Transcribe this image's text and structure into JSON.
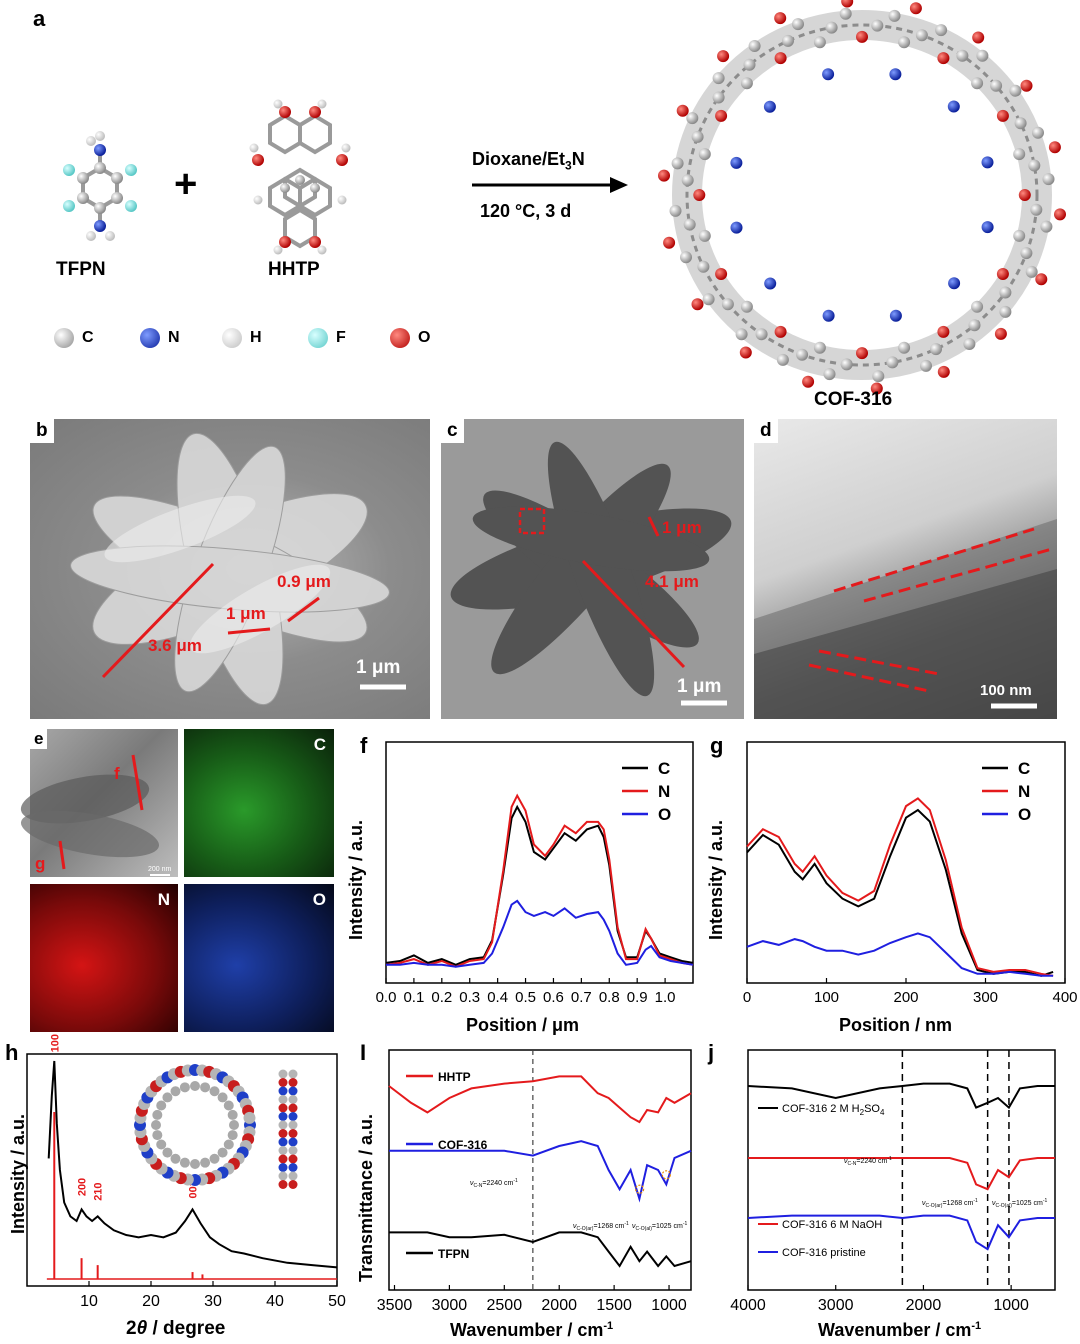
{
  "panel_a": {
    "letter": "a",
    "reactant1": "TFPN",
    "reactant2": "HHTP",
    "plus": "+",
    "condition_solvent": "Dioxane/Et",
    "condition_solvent_sub": "3",
    "condition_solvent_end": "N",
    "condition_temp": "120 °C, 3 d",
    "product": "COF-316",
    "legend": [
      {
        "sym": "C",
        "color": "#c8c8c8"
      },
      {
        "sym": "N",
        "color": "#1f3fc8"
      },
      {
        "sym": "H",
        "color": "#eeeeee"
      },
      {
        "sym": "F",
        "color": "#7fe3e0"
      },
      {
        "sym": "O",
        "color": "#e0281e"
      }
    ]
  },
  "panel_b": {
    "letter": "b",
    "m1": "3.6 μm",
    "m2": "1 μm",
    "m3": "0.9 μm",
    "scale": "1 μm"
  },
  "panel_c": {
    "letter": "c",
    "m1": "1 μm",
    "m2": "4.1 μm",
    "scale": "1 μm"
  },
  "panel_d": {
    "letter": "d",
    "scale": "100 nm"
  },
  "panel_e": {
    "letter": "e",
    "line_f": "f",
    "line_g": "g",
    "scale": "200 nm",
    "maps": [
      "C",
      "N",
      "O"
    ]
  },
  "colors": {
    "C": "#000000",
    "N": "#e41a1c",
    "O": "#1f1fe0",
    "red": "#e41a1c",
    "blue": "#1f1fe0"
  },
  "panel_f": {
    "letter": "f",
    "xlabel": "Position / μm",
    "ylabel": "Intensity / a.u.",
    "legend": [
      "C",
      "N",
      "O"
    ]
  },
  "panel_g": {
    "letter": "g",
    "xlabel": "Position / nm",
    "ylabel": "Intensity / a.u.",
    "legend": [
      "C",
      "N",
      "O"
    ]
  },
  "panel_h": {
    "letter": "h",
    "xlabel_pre": "2",
    "xlabel_theta": "θ",
    "xlabel_post": " / degree",
    "ylabel": "Intensity / a.u.",
    "peaks": [
      "100",
      "200",
      "210",
      "001"
    ]
  },
  "panel_i": {
    "letter": "I",
    "xlabel": "Wavenumber / cm",
    "xlabel_sup": "-1",
    "ylabel": "Transmittance / a.u.",
    "legend": [
      "HHTP",
      "COF-316",
      "TFPN"
    ],
    "ann_cn": "ν",
    "ann_cn_sub": "C-N",
    "ann_cn_val": "=2240 cm",
    "ann_co1": "ν",
    "ann_co1_sub": "C-O(ar)",
    "ann_co1_val": "=1268 cm",
    "ann_co2": "ν",
    "ann_co2_sub": "C-O(al)",
    "ann_co2_val": "=1025 cm",
    "sup": "-1"
  },
  "panel_j": {
    "letter": "j",
    "xlabel": "Wavenumber / cm",
    "xlabel_sup": "-1",
    "legend_acid": "COF-316 2 M H",
    "legend_acid_sub": "2",
    "legend_acid_mid": "SO",
    "legend_acid_sub2": "4",
    "legend_base": "COF-316 6 M NaOH",
    "legend_pristine": "COF-316 pristine",
    "ann_cn": "ν",
    "ann_cn_sub": "C-N",
    "ann_cn_val": "=2240 cm",
    "ann_co1": "ν",
    "ann_co1_sub": "C-O(ar)",
    "ann_co1_val": "=1268 cm",
    "ann_co2": "ν",
    "ann_co2_sub": "C-O(al)",
    "ann_co2_val": "=1025 cm",
    "sup": "-1"
  },
  "chart_data": [
    {
      "id": "f",
      "type": "line",
      "xlabel": "Position / μm",
      "ylabel": "Intensity / a.u.",
      "xlim": [
        0,
        1.1
      ],
      "xticks": [
        "0.0",
        "0.1",
        "0.2",
        "0.3",
        "0.4",
        "0.5",
        "0.6",
        "0.7",
        "0.8",
        "0.9",
        "1.0"
      ],
      "ylim": [
        0,
        1
      ],
      "x": [
        0,
        0.05,
        0.1,
        0.15,
        0.2,
        0.25,
        0.3,
        0.35,
        0.38,
        0.42,
        0.45,
        0.47,
        0.5,
        0.53,
        0.57,
        0.6,
        0.64,
        0.68,
        0.72,
        0.76,
        0.78,
        0.8,
        0.83,
        0.86,
        0.9,
        0.93,
        0.95,
        0.98,
        1.02,
        1.06,
        1.1
      ],
      "series": [
        {
          "name": "C",
          "values": [
            0.03,
            0.04,
            0.07,
            0.03,
            0.05,
            0.02,
            0.05,
            0.06,
            0.15,
            0.5,
            0.8,
            0.86,
            0.78,
            0.62,
            0.58,
            0.64,
            0.72,
            0.68,
            0.74,
            0.76,
            0.7,
            0.55,
            0.2,
            0.06,
            0.06,
            0.2,
            0.16,
            0.08,
            0.06,
            0.04,
            0.03
          ]
        },
        {
          "name": "N",
          "values": [
            0.02,
            0.03,
            0.05,
            0.02,
            0.04,
            0.01,
            0.04,
            0.05,
            0.14,
            0.52,
            0.86,
            0.92,
            0.84,
            0.66,
            0.6,
            0.66,
            0.76,
            0.72,
            0.78,
            0.78,
            0.74,
            0.58,
            0.22,
            0.05,
            0.05,
            0.21,
            0.16,
            0.07,
            0.05,
            0.03,
            0.02
          ]
        },
        {
          "name": "O",
          "values": [
            0.02,
            0.02,
            0.03,
            0.02,
            0.02,
            0.01,
            0.02,
            0.03,
            0.08,
            0.22,
            0.34,
            0.36,
            0.3,
            0.28,
            0.3,
            0.28,
            0.32,
            0.27,
            0.29,
            0.3,
            0.26,
            0.2,
            0.08,
            0.02,
            0.03,
            0.1,
            0.12,
            0.06,
            0.04,
            0.03,
            0.02
          ]
        }
      ]
    },
    {
      "id": "g",
      "type": "line",
      "xlabel": "Position / nm",
      "ylabel": "Intensity / a.u.",
      "xlim": [
        0,
        400
      ],
      "xticks": [
        "0",
        "100",
        "200",
        "300",
        "400"
      ],
      "ylim": [
        0,
        1
      ],
      "x": [
        0,
        20,
        40,
        60,
        70,
        85,
        100,
        120,
        140,
        160,
        180,
        200,
        215,
        230,
        250,
        270,
        290,
        310,
        330,
        350,
        370,
        385
      ],
      "series": [
        {
          "name": "C",
          "values": [
            0.64,
            0.73,
            0.68,
            0.54,
            0.5,
            0.58,
            0.48,
            0.4,
            0.36,
            0.4,
            0.62,
            0.82,
            0.86,
            0.8,
            0.55,
            0.22,
            0.03,
            0.01,
            0.02,
            0.02,
            0.0,
            0.02
          ]
        },
        {
          "name": "N",
          "values": [
            0.67,
            0.76,
            0.72,
            0.58,
            0.54,
            0.62,
            0.52,
            0.43,
            0.39,
            0.44,
            0.68,
            0.88,
            0.92,
            0.86,
            0.6,
            0.25,
            0.04,
            0.02,
            0.03,
            0.03,
            0.01,
            0.0
          ]
        },
        {
          "name": "O",
          "values": [
            0.15,
            0.18,
            0.16,
            0.19,
            0.18,
            0.15,
            0.13,
            0.13,
            0.11,
            0.13,
            0.17,
            0.2,
            0.22,
            0.2,
            0.12,
            0.04,
            0.01,
            0.01,
            0.02,
            0.01,
            0.0,
            0.0
          ]
        }
      ]
    },
    {
      "id": "h",
      "type": "line",
      "xlabel": "2θ / degree",
      "ylabel": "Intensity / a.u.",
      "xlim": [
        0,
        50
      ],
      "xticks": [
        "10",
        "20",
        "30",
        "40",
        "50"
      ],
      "ylim": [
        0,
        1
      ],
      "x": [
        3.5,
        4.0,
        4.4,
        4.8,
        5.3,
        6,
        7,
        8,
        8.8,
        9.6,
        10.5,
        11.4,
        12.5,
        14,
        16,
        18,
        20,
        22,
        24,
        25.5,
        26.7,
        28,
        29.5,
        31,
        33,
        35,
        38,
        42,
        46,
        50
      ],
      "series": [
        {
          "name": "COF-316",
          "values": [
            0.55,
            0.82,
            0.97,
            0.7,
            0.5,
            0.36,
            0.3,
            0.28,
            0.33,
            0.3,
            0.28,
            0.3,
            0.27,
            0.24,
            0.22,
            0.21,
            0.22,
            0.21,
            0.23,
            0.28,
            0.33,
            0.27,
            0.21,
            0.18,
            0.15,
            0.14,
            0.12,
            0.1,
            0.09,
            0.08
          ]
        },
        {
          "name": "simulated",
          "sticks": [
            [
              4.4,
              0.72
            ],
            [
              8.8,
              0.09
            ],
            [
              11.4,
              0.06
            ],
            [
              26.7,
              0.03
            ],
            [
              28.3,
              0.02
            ]
          ]
        }
      ]
    },
    {
      "id": "I",
      "type": "line",
      "xlabel": "Wavenumber / cm-1",
      "ylabel": "Transmittance / a.u.",
      "xlim": [
        3500,
        800
      ],
      "xticks": [
        "3500",
        "3000",
        "2500",
        "2000",
        "1500",
        "1000"
      ],
      "vline": 2240,
      "x": [
        3550,
        3350,
        3200,
        3000,
        2800,
        2500,
        2240,
        2000,
        1800,
        1650,
        1550,
        1450,
        1350,
        1270,
        1200,
        1100,
        1025,
        950,
        800
      ],
      "series": [
        {
          "name": "HHTP",
          "values": [
            0.85,
            0.78,
            0.74,
            0.8,
            0.84,
            0.86,
            0.87,
            0.89,
            0.89,
            0.82,
            0.8,
            0.76,
            0.72,
            0.7,
            0.75,
            0.74,
            0.8,
            0.78,
            0.82
          ]
        },
        {
          "name": "COF-316",
          "values": [
            0.58,
            0.58,
            0.58,
            0.58,
            0.58,
            0.58,
            0.56,
            0.6,
            0.62,
            0.6,
            0.5,
            0.42,
            0.5,
            0.38,
            0.52,
            0.5,
            0.44,
            0.55,
            0.58
          ]
        },
        {
          "name": "TFPN",
          "values": [
            0.24,
            0.24,
            0.24,
            0.22,
            0.22,
            0.23,
            0.2,
            0.24,
            0.24,
            0.22,
            0.16,
            0.1,
            0.18,
            0.12,
            0.16,
            0.1,
            0.14,
            0.1,
            0.12
          ]
        }
      ]
    },
    {
      "id": "j",
      "type": "line",
      "xlabel": "Wavenumber / cm-1",
      "ylabel": "",
      "xlim": [
        4000,
        500
      ],
      "xticks": [
        "4000",
        "3000",
        "2000",
        "1000"
      ],
      "vlines": [
        2240,
        1268,
        1025
      ],
      "x": [
        4000,
        3500,
        3000,
        2500,
        2240,
        2000,
        1700,
        1500,
        1400,
        1268,
        1150,
        1025,
        900,
        700,
        500
      ],
      "series": [
        {
          "name": "COF-316 2 M H2SO4",
          "values": [
            0.85,
            0.84,
            0.8,
            0.84,
            0.85,
            0.86,
            0.86,
            0.84,
            0.76,
            0.78,
            0.8,
            0.76,
            0.84,
            0.85,
            0.85
          ]
        },
        {
          "name": "COF-316 6 M NaOH",
          "values": [
            0.55,
            0.55,
            0.55,
            0.55,
            0.55,
            0.55,
            0.55,
            0.53,
            0.44,
            0.42,
            0.5,
            0.47,
            0.54,
            0.55,
            0.55
          ]
        },
        {
          "name": "COF-316 pristine",
          "values": [
            0.3,
            0.31,
            0.31,
            0.31,
            0.3,
            0.31,
            0.31,
            0.29,
            0.2,
            0.17,
            0.27,
            0.22,
            0.29,
            0.3,
            0.3
          ]
        }
      ]
    }
  ]
}
